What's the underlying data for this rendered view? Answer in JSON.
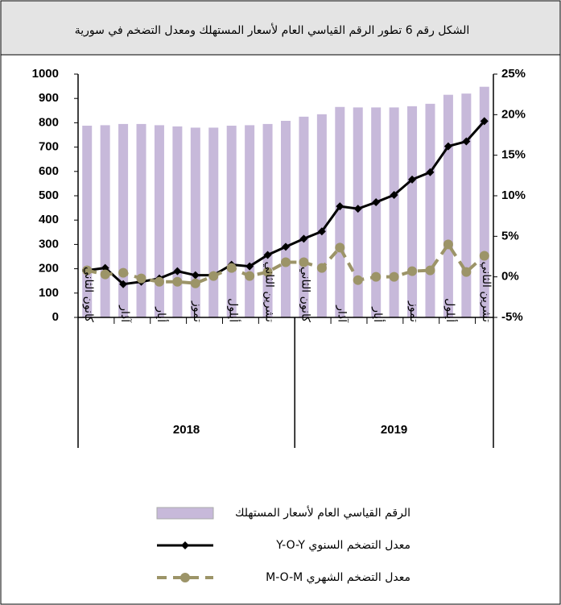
{
  "chart_data": {
    "type": "bar",
    "title": "الشكل رقم 6 تطور الرقم القياسي العام لأسعار المستهلك ومعدل التضخم في سورية",
    "categories": [
      "كانون الثاني",
      null,
      "آذار",
      null,
      "أيار",
      null,
      "تموز",
      null,
      "أيلول",
      null,
      "تشرين الثاني",
      null,
      "كانون الثاني",
      null,
      "آذار",
      null,
      "أيار",
      null,
      "تموز",
      null,
      "أيلول",
      null,
      "تشرين الثاني"
    ],
    "years": [
      {
        "label": "2018",
        "start": 0,
        "end": 11
      },
      {
        "label": "2019",
        "start": 12,
        "end": 22
      }
    ],
    "series": [
      {
        "name": "الرقم القياسي العام لأسعار المستهلك",
        "type": "bar",
        "color": "#c7b9da",
        "values": [
          788,
          790,
          795,
          795,
          790,
          785,
          780,
          780,
          788,
          790,
          795,
          808,
          825,
          835,
          865,
          863,
          863,
          863,
          868,
          878,
          915,
          920,
          948
        ]
      },
      {
        "name": "معدل التضخم السنوي Y-O-Y",
        "type": "line",
        "axis": "y2",
        "color": "#000000",
        "marker": "diamond",
        "values": [
          0.8,
          1.1,
          -0.9,
          -0.6,
          -0.2,
          0.7,
          0.2,
          0.2,
          1.5,
          1.3,
          2.7,
          3.7,
          4.7,
          5.6,
          8.7,
          8.4,
          9.2,
          10.1,
          12.0,
          12.9,
          16.1,
          16.7,
          19.2
        ]
      },
      {
        "name": "معدل التضخم الشهري M-O-M",
        "type": "line",
        "axis": "y2",
        "color": "#9c9468",
        "marker": "circle",
        "dashed": true,
        "values": [
          0.8,
          0.3,
          0.5,
          -0.2,
          -0.6,
          -0.6,
          -0.8,
          0.1,
          1.1,
          0.1,
          0.6,
          1.8,
          1.8,
          1.1,
          3.6,
          -0.4,
          0,
          0,
          0.7,
          0.8,
          4.0,
          0.6,
          2.6
        ]
      }
    ],
    "ylim": [
      0,
      1000
    ],
    "yticks": [
      0,
      100,
      200,
      300,
      400,
      500,
      600,
      700,
      800,
      900,
      1000
    ],
    "y2lim": [
      -5,
      25
    ],
    "y2ticks": [
      {
        "value": -5,
        "label": "-5%"
      },
      {
        "value": 0,
        "label": "0%"
      },
      {
        "value": 5,
        "label": "5%"
      },
      {
        "value": 10,
        "label": "10%"
      },
      {
        "value": 15,
        "label": "15%"
      },
      {
        "value": 20,
        "label": "20%"
      },
      {
        "value": 25,
        "label": "25%"
      }
    ]
  }
}
